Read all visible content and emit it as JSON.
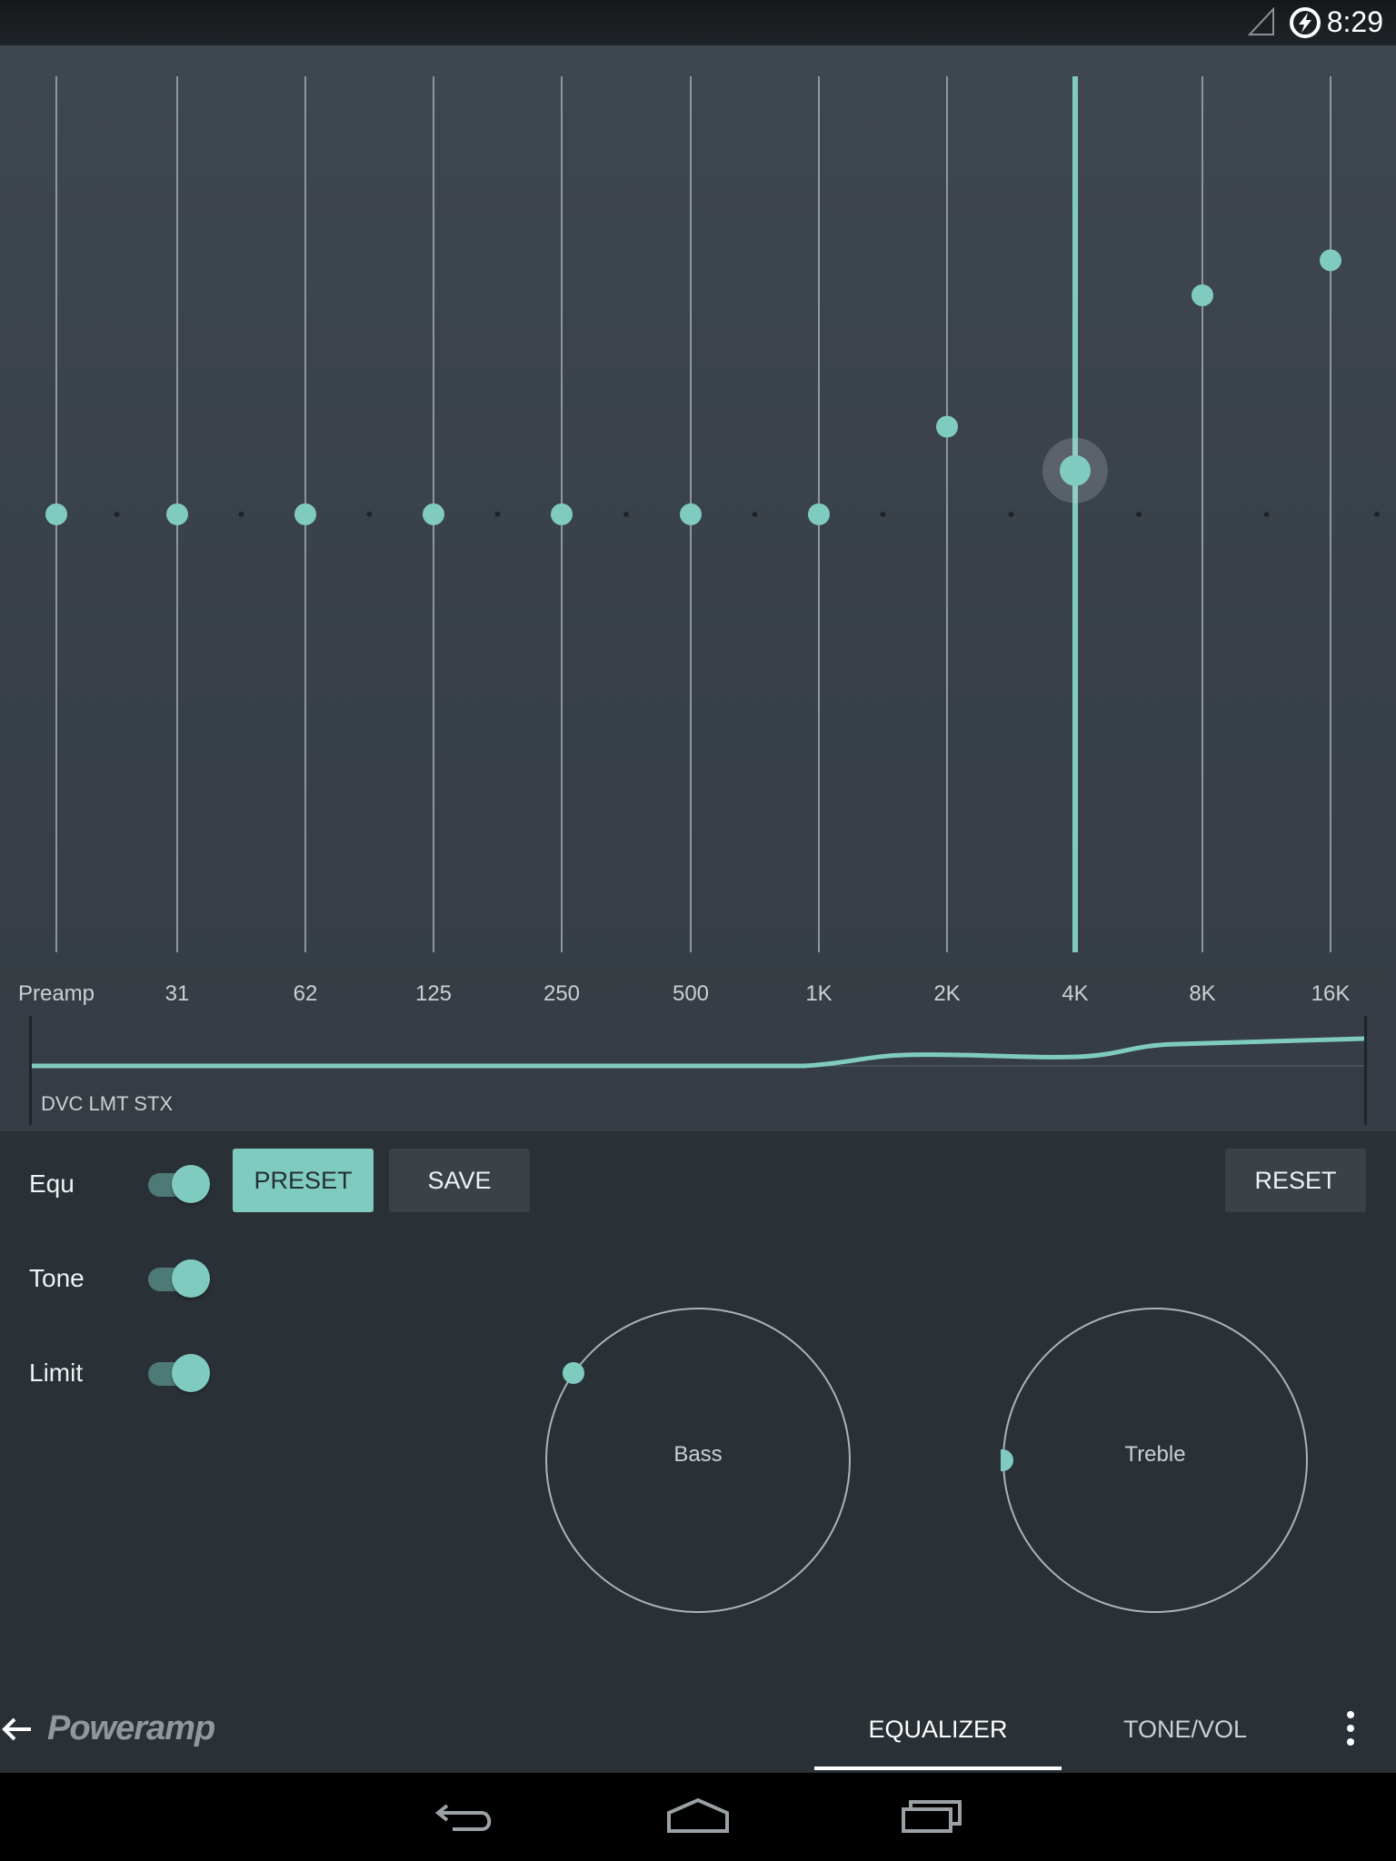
{
  "status_bar": {
    "time": "8:29",
    "icons": [
      "signal-icon",
      "charging-icon"
    ]
  },
  "equalizer": {
    "accent_color": "#80cbc0",
    "bands": [
      {
        "label": "Preamp",
        "level": 0.5
      },
      {
        "label": "31",
        "level": 0.5
      },
      {
        "label": "62",
        "level": 0.5
      },
      {
        "label": "125",
        "level": 0.5
      },
      {
        "label": "250",
        "level": 0.5
      },
      {
        "label": "500",
        "level": 0.5
      },
      {
        "label": "1K",
        "level": 0.5
      },
      {
        "label": "2K",
        "level": 0.6
      },
      {
        "label": "4K",
        "level": 0.55,
        "active": true
      },
      {
        "label": "8K",
        "level": 0.75
      },
      {
        "label": "16K",
        "level": 0.79
      }
    ],
    "curve_status": "DVC LMT STX"
  },
  "controls": {
    "toggles": [
      {
        "label": "Equ",
        "on": true
      },
      {
        "label": "Tone",
        "on": true
      },
      {
        "label": "Limit",
        "on": true
      }
    ],
    "preset_label": "PRESET",
    "save_label": "SAVE",
    "reset_label": "RESET",
    "knobs": [
      {
        "label": "Bass",
        "value": 0.2
      },
      {
        "label": "Treble",
        "value": 0.0
      }
    ]
  },
  "bottom_nav": {
    "logo": "Poweramp",
    "tabs": [
      {
        "label": "EQUALIZER",
        "active": true
      },
      {
        "label": "TONE/VOL",
        "active": false
      }
    ]
  },
  "system_nav": {
    "icons": [
      "back-icon",
      "home-icon",
      "recents-icon"
    ]
  }
}
